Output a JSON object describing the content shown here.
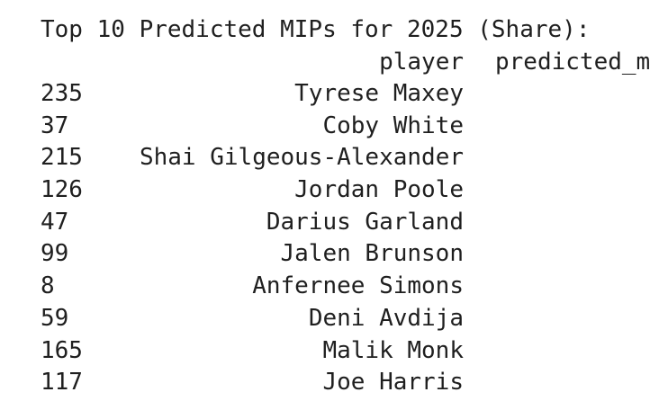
{
  "output": {
    "title": "Top 10 Predicted MIPs for 2025 (Share):",
    "headers": {
      "player": "player",
      "predicted": "predicted_m"
    },
    "rows": [
      {
        "index": "235",
        "player": "Tyrese Maxey"
      },
      {
        "index": "37",
        "player": "Coby White"
      },
      {
        "index": "215",
        "player": "Shai Gilgeous-Alexander"
      },
      {
        "index": "126",
        "player": "Jordan Poole"
      },
      {
        "index": "47",
        "player": "Darius Garland"
      },
      {
        "index": "99",
        "player": "Jalen Brunson"
      },
      {
        "index": "8",
        "player": "Anfernee Simons"
      },
      {
        "index": "59",
        "player": "Deni Avdija"
      },
      {
        "index": "165",
        "player": "Malik Monk"
      },
      {
        "index": "117",
        "player": "Joe Harris"
      }
    ]
  }
}
